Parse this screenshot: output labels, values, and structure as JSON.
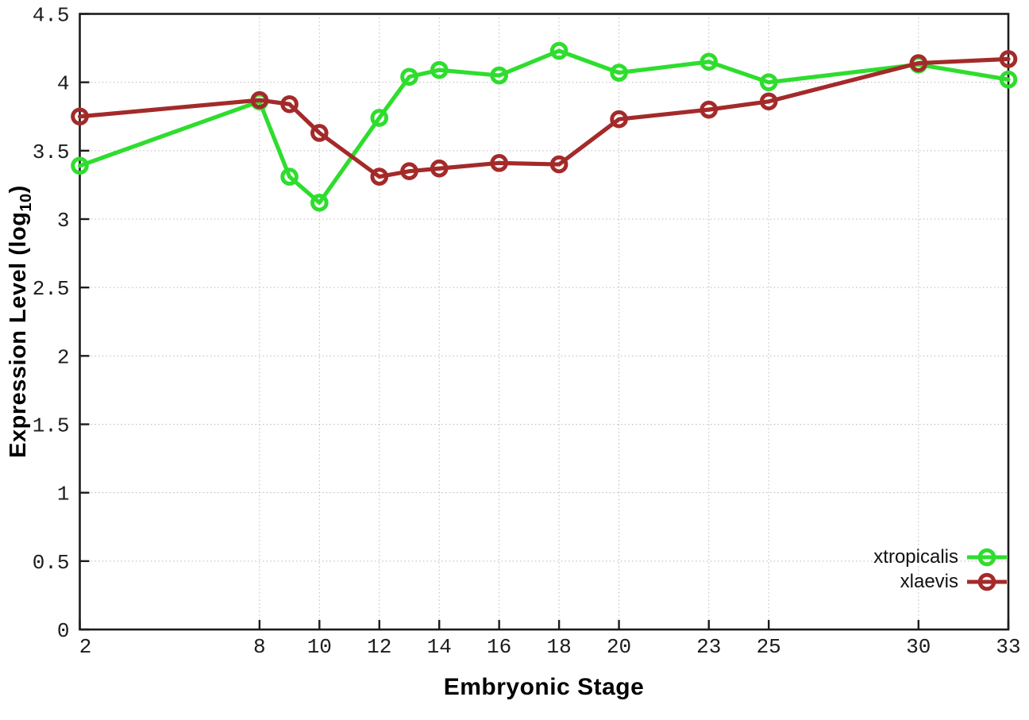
{
  "chart_data": {
    "type": "line",
    "title": "",
    "xlabel": "Embryonic Stage",
    "ylabel": "Expression Level (log10)",
    "ylabel_main": "Expression Level (log",
    "ylabel_sub": "10",
    "ylabel_close": ")",
    "xlim": [
      2,
      33
    ],
    "ylim": [
      0,
      4.5
    ],
    "x_ticks": [
      2,
      8,
      10,
      12,
      14,
      16,
      18,
      20,
      23,
      25,
      30,
      33
    ],
    "y_ticks": [
      0,
      0.5,
      1,
      1.5,
      2,
      2.5,
      3,
      3.5,
      4,
      4.5
    ],
    "grid": true,
    "grid_style": "dotted",
    "legend_position": "bottom-right",
    "x": [
      2,
      8,
      9,
      10,
      12,
      13,
      14,
      16,
      18,
      20,
      23,
      25,
      30,
      33
    ],
    "series": [
      {
        "name": "xtropicalis",
        "color": "#2edd2e",
        "marker": "open-circle",
        "values": [
          3.39,
          3.86,
          3.31,
          3.12,
          3.74,
          4.04,
          4.09,
          4.05,
          4.23,
          4.07,
          4.15,
          4.0,
          4.13,
          4.02
        ]
      },
      {
        "name": "xlaevis",
        "color": "#a42a2a",
        "marker": "open-circle",
        "values": [
          3.75,
          3.87,
          3.84,
          3.63,
          3.31,
          3.35,
          3.37,
          3.41,
          3.4,
          3.73,
          3.8,
          3.86,
          4.14,
          4.17
        ]
      }
    ],
    "colors": {
      "border": "#1c1c1c",
      "grid": "#b8b8b8",
      "tick_text": "#1c1c1c"
    }
  }
}
